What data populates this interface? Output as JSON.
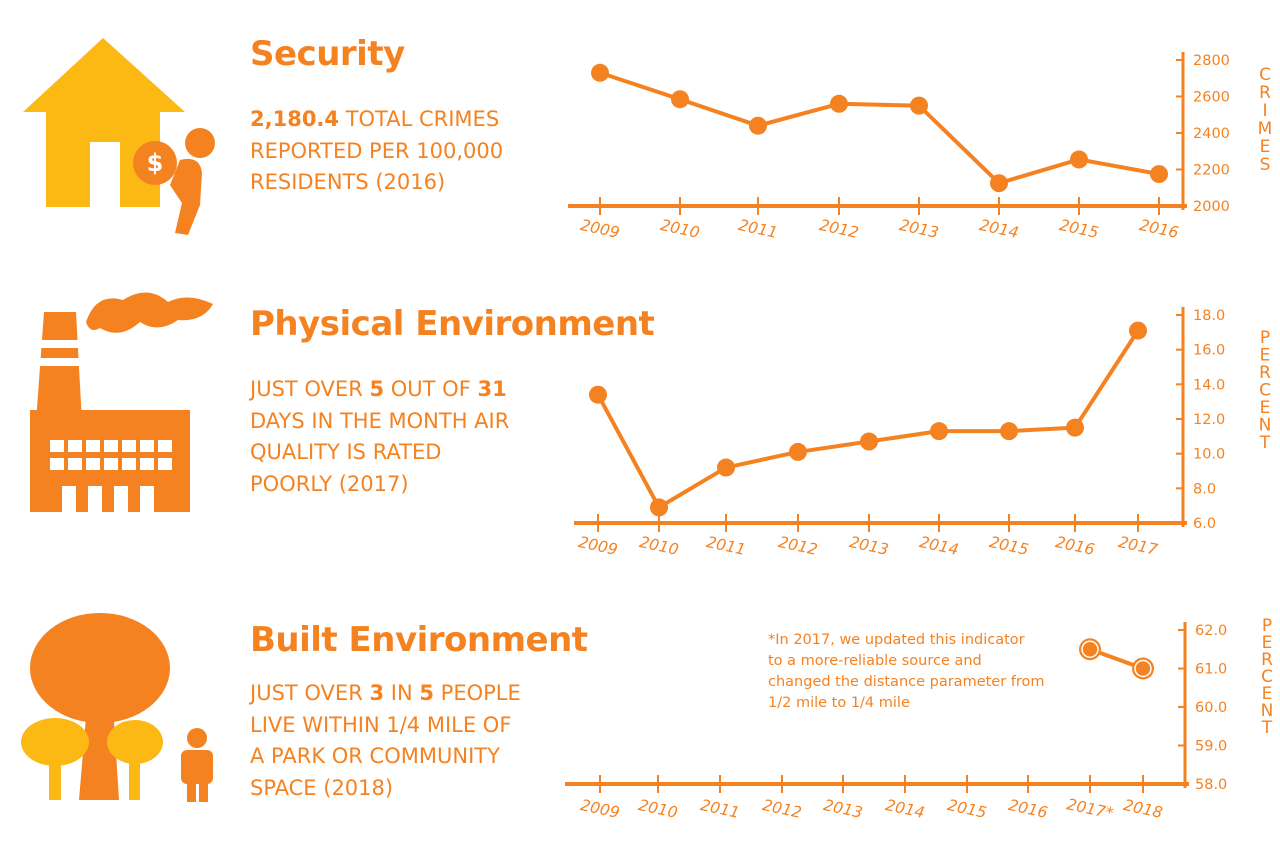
{
  "colors": {
    "orange": "#f58220",
    "yellow": "#fdb913",
    "white": "#ffffff"
  },
  "sections": [
    {
      "title": "Security",
      "stat": {
        "value": "2,180.4",
        "line1_rest": " TOTAL CRIMES",
        "line2": "REPORTED PER 100,000",
        "line3": "RESIDENTS (2016)"
      },
      "icon": "house-thief-icon"
    },
    {
      "title": "Physical Environment",
      "stat": {
        "line1_pre": "JUST OVER ",
        "num1": "5",
        "line1_mid": " OUT OF ",
        "num2": "31",
        "line2": "DAYS IN THE MONTH AIR",
        "line3": "QUALITY IS RATED",
        "line4": "POORLY (2017)"
      },
      "icon": "factory-smoke-icon"
    },
    {
      "title": "Built Environment",
      "stat": {
        "line1_pre": "JUST OVER ",
        "num1": "3",
        "line1_mid": " IN ",
        "num2": "5",
        "line1_post": " PEOPLE",
        "line2": "LIVE WITHIN 1/4 MILE OF",
        "line3": "A PARK OR COMMUNITY",
        "line4": "SPACE (2018)"
      },
      "icon": "trees-person-icon"
    }
  ],
  "note": {
    "lines": [
      "*In 2017, we updated this indicator",
      "to a more-reliable source and",
      "changed the distance parameter from",
      "1/2 mile to 1/4 mile"
    ]
  },
  "chart_data": [
    {
      "type": "line",
      "x": [
        "2009",
        "2010",
        "2011",
        "2012",
        "2013",
        "2014",
        "2015",
        "2016"
      ],
      "values": [
        2730,
        2585,
        2440,
        2560,
        2550,
        2125,
        2255,
        2175
      ],
      "ylabel": "CRIMES",
      "ylim": [
        2000,
        2800
      ],
      "yticks": [
        "2000",
        "2200",
        "2400",
        "2600",
        "2800"
      ],
      "axis_side": "right",
      "grid": false
    },
    {
      "type": "line",
      "x": [
        "2009",
        "2010",
        "2011",
        "2012",
        "2013",
        "2014",
        "2015",
        "2016",
        "2017"
      ],
      "values": [
        13.4,
        6.9,
        9.2,
        10.1,
        10.7,
        11.3,
        11.3,
        11.5,
        17.1
      ],
      "ylabel": "PERCENT",
      "ylim": [
        6.0,
        18.0
      ],
      "yticks": [
        "6.0",
        "8.0",
        "10.0",
        "12.0",
        "14.0",
        "16.0",
        "18.0"
      ],
      "axis_side": "right",
      "grid": false
    },
    {
      "type": "line",
      "x": [
        "2009",
        "2010",
        "2011",
        "2012",
        "2013",
        "2014",
        "2015",
        "2016",
        "2017*",
        "2018"
      ],
      "values": [
        null,
        null,
        null,
        null,
        null,
        null,
        null,
        null,
        61.5,
        61.0
      ],
      "ylabel": "PERCENT",
      "ylim": [
        58.0,
        62.0
      ],
      "yticks": [
        "58.0",
        "59.0",
        "60.0",
        "61.0",
        "62.0"
      ],
      "axis_side": "right",
      "grid": false
    }
  ]
}
